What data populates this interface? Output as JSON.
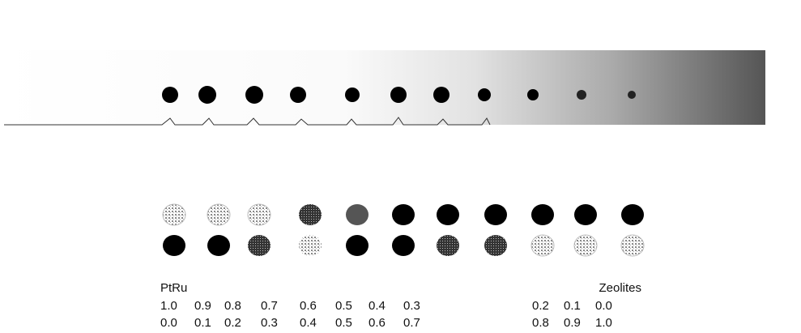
{
  "labels": {
    "left": "PtRu",
    "right": "Zeolites"
  },
  "rows": [
    [
      "1.0",
      "0.9",
      "0.8",
      "0.7",
      "0.6",
      "0.5",
      "0.4",
      "0.3",
      "0.2",
      "0.1",
      "0.0"
    ],
    [
      "0.0",
      "0.1",
      "0.2",
      "0.3",
      "0.4",
      "0.5",
      "0.6",
      "0.7",
      "0.8",
      "0.9",
      "1.0"
    ]
  ]
}
